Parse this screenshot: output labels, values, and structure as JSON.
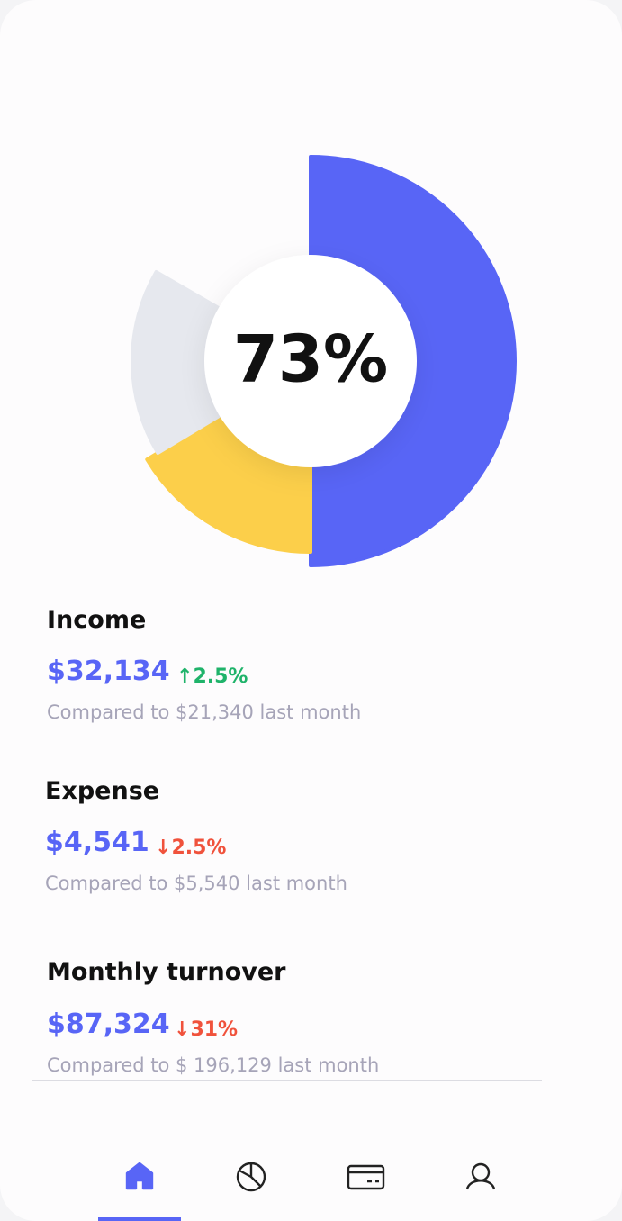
{
  "center_label": "73%",
  "stats": [
    {
      "title": "Income",
      "amount": "$32,134",
      "change": "2.5%",
      "comparison": "Compared to $21,340 last month"
    },
    {
      "title": "Expense",
      "amount": "$4,541",
      "change": "2.5%",
      "comparison": "Compared to $5,540 last month"
    },
    {
      "title": "Monthly turnover",
      "amount": "$87,324",
      "change": "31%",
      "comparison": "Compared to $ 196,129 last month"
    }
  ]
}
